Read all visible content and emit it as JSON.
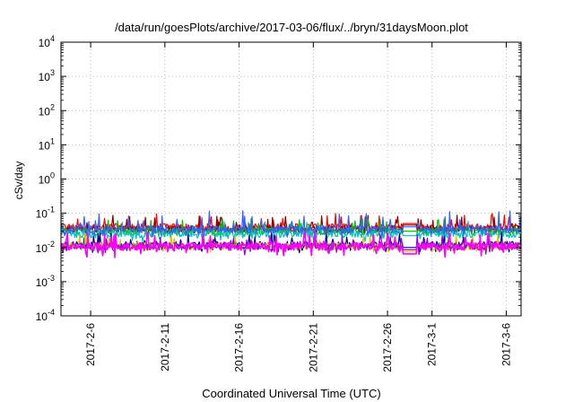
{
  "chart_data": {
    "type": "line",
    "title": "/data/run/goesPlots/archive/2017-03-06/flux/../bryn/31daysMoon.plot",
    "xlabel": "Coordinated Universal Time (UTC)",
    "ylabel": "cSv/day",
    "yscale": "log",
    "ylim": [
      0.0001,
      10000
    ],
    "xlim": [
      "2017-02-04",
      "2017-03-07"
    ],
    "grid": true,
    "legend": "none",
    "x_ticks": [
      "2017-2-6",
      "2017-2-11",
      "2017-2-16",
      "2017-2-21",
      "2017-2-26",
      "2017-3-1",
      "2017-3-6"
    ],
    "x_tick_dates": [
      "2017-02-06",
      "2017-02-11",
      "2017-02-16",
      "2017-02-21",
      "2017-02-26",
      "2017-03-01",
      "2017-03-06"
    ],
    "y_ticks": [
      {
        "base": "10",
        "exp": "-4",
        "value": 0.0001
      },
      {
        "base": "10",
        "exp": "-3",
        "value": 0.001
      },
      {
        "base": "10",
        "exp": "-2",
        "value": 0.01
      },
      {
        "base": "10",
        "exp": "-1",
        "value": 0.1
      },
      {
        "base": "10",
        "exp": "0",
        "value": 1
      },
      {
        "base": "10",
        "exp": "1",
        "value": 10
      },
      {
        "base": "10",
        "exp": "2",
        "value": 100
      },
      {
        "base": "10",
        "exp": "3",
        "value": 1000
      },
      {
        "base": "10",
        "exp": "4",
        "value": 10000
      }
    ],
    "gap": [
      "2017-02-27",
      "2017-02-28"
    ],
    "series": [
      {
        "color": "#ff0000",
        "typical": 0.04,
        "low": 0.028,
        "high": 0.1,
        "gap_level": 0.05
      },
      {
        "color": "#8b0000",
        "typical": 0.035,
        "low": 0.025,
        "high": 0.09,
        "gap_level": 0.045
      },
      {
        "color": "#00c000",
        "typical": 0.03,
        "low": 0.02,
        "high": 0.07,
        "gap_level": 0.03
      },
      {
        "color": "#00c0c0",
        "typical": 0.025,
        "low": 0.015,
        "high": 0.06,
        "gap_level": 0.022
      },
      {
        "color": "#3060ff",
        "typical": 0.035,
        "low": 0.02,
        "high": 0.12,
        "gap_level": 0.04
      },
      {
        "color": "#000080",
        "typical": 0.012,
        "low": 0.007,
        "high": 0.03,
        "gap_level": 0.01
      },
      {
        "color": "#cccc00",
        "typical": 0.011,
        "low": 0.007,
        "high": 0.025,
        "gap_level": 0.0075
      },
      {
        "color": "#9400d3",
        "typical": 0.011,
        "low": 0.006,
        "high": 0.025,
        "gap_level": 0.0085
      },
      {
        "color": "#ff00ff",
        "typical": 0.011,
        "low": 0.005,
        "high": 0.03,
        "gap_level": 0.0065
      }
    ]
  }
}
